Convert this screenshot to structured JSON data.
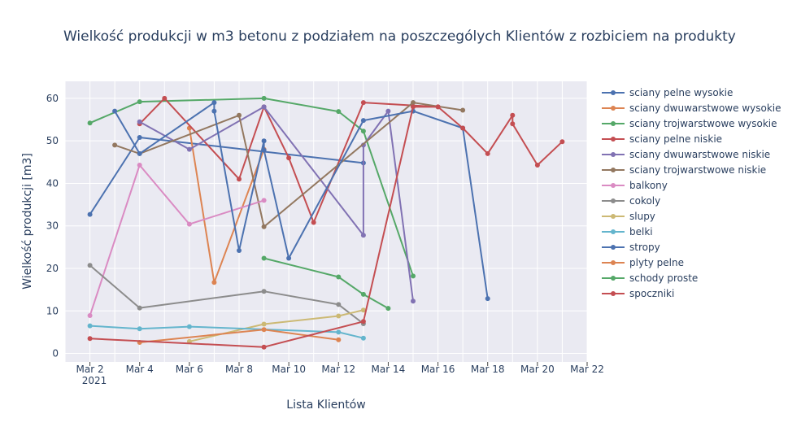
{
  "chart_data": {
    "type": "line",
    "title": "Wielkość produkcji w m3 betonu z podziałem na poszczególych Klientów z rozbiciem na produkty",
    "xlabel": "Lista Klientów",
    "ylabel": "Wielkość produkcji [m3]",
    "x_axis": {
      "kind": "date",
      "range": [
        "2021-03-01",
        "2021-03-22"
      ],
      "tick_dates": [
        "2021-03-02",
        "2021-03-04",
        "2021-03-06",
        "2021-03-08",
        "2021-03-10",
        "2021-03-12",
        "2021-03-14",
        "2021-03-16",
        "2021-03-18",
        "2021-03-20",
        "2021-03-22"
      ],
      "tick_labels": [
        "Mar 2",
        "Mar 4",
        "Mar 6",
        "Mar 8",
        "Mar 10",
        "Mar 12",
        "Mar 14",
        "Mar 16",
        "Mar 18",
        "Mar 20",
        "Mar 22"
      ],
      "year_label": "2021"
    },
    "y_axis": {
      "range": [
        -2,
        64
      ],
      "ticks": [
        0,
        10,
        20,
        30,
        40,
        50,
        60
      ]
    },
    "grid": true,
    "legend_position": "right",
    "series": [
      {
        "name": "sciany pelne wysokie",
        "color": "#4c72b0",
        "points": [
          [
            "2021-03-02",
            32.7
          ],
          [
            "2021-03-04",
            50.8
          ],
          [
            "2021-03-13",
            44.8
          ]
        ]
      },
      {
        "name": "sciany dwuwarstwowe wysokie",
        "color": "#dd8452",
        "points": [
          [
            "2021-03-06",
            53
          ],
          [
            "2021-03-07",
            16.7
          ],
          [
            "2021-03-09",
            48
          ]
        ]
      },
      {
        "name": "sciany trojwarstwowe wysokie",
        "color": "#55a868",
        "points": [
          [
            "2021-03-02",
            54.2
          ],
          [
            "2021-03-04",
            59.2
          ],
          [
            "2021-03-09",
            60
          ],
          [
            "2021-03-12",
            56.9
          ],
          [
            "2021-03-13",
            52.3
          ],
          [
            "2021-03-15",
            18.2
          ]
        ]
      },
      {
        "name": "sciany pelne niskie",
        "color": "#c44e52",
        "points": [
          [
            "2021-03-04",
            54
          ],
          [
            "2021-03-05",
            60
          ],
          [
            "2021-03-08",
            41
          ],
          [
            "2021-03-09",
            58
          ],
          [
            "2021-03-10",
            46
          ],
          [
            "2021-03-11",
            30.8
          ],
          [
            "2021-03-13",
            59
          ],
          [
            "2021-03-16",
            58
          ]
        ]
      },
      {
        "name": "sciany dwuwarstwowe niskie",
        "color": "#8172b3",
        "points": [
          [
            "2021-03-04",
            54.5
          ],
          [
            "2021-03-06",
            48
          ],
          [
            "2021-03-09",
            58
          ],
          [
            "2021-03-13",
            27.8
          ],
          [
            "2021-03-13",
            49
          ],
          [
            "2021-03-14",
            57
          ],
          [
            "2021-03-15",
            12.3
          ]
        ]
      },
      {
        "name": "sciany trojwarstwowe niskie",
        "color": "#937860",
        "points": [
          [
            "2021-03-03",
            49
          ],
          [
            "2021-03-04",
            47
          ],
          [
            "2021-03-08",
            56
          ],
          [
            "2021-03-09",
            29.8
          ],
          [
            "2021-03-15",
            59
          ],
          [
            "2021-03-17",
            57.2
          ]
        ]
      },
      {
        "name": "balkony",
        "color": "#da8bc3",
        "points": [
          [
            "2021-03-02",
            8.9
          ],
          [
            "2021-03-04",
            44.3
          ],
          [
            "2021-03-06",
            30.4
          ],
          [
            "2021-03-09",
            36
          ]
        ]
      },
      {
        "name": "cokoly",
        "color": "#8c8c8c",
        "points": [
          [
            "2021-03-02",
            20.7
          ],
          [
            "2021-03-04",
            10.7
          ],
          [
            "2021-03-09",
            14.6
          ],
          [
            "2021-03-12",
            11.5
          ],
          [
            "2021-03-13",
            7
          ]
        ]
      },
      {
        "name": "slupy",
        "color": "#ccb974",
        "points": [
          [
            "2021-03-06",
            2.8
          ],
          [
            "2021-03-09",
            6.9
          ],
          [
            "2021-03-12",
            8.8
          ],
          [
            "2021-03-13",
            10.2
          ]
        ]
      },
      {
        "name": "belki",
        "color": "#64b5cd",
        "points": [
          [
            "2021-03-02",
            6.5
          ],
          [
            "2021-03-04",
            5.8
          ],
          [
            "2021-03-06",
            6.3
          ],
          [
            "2021-03-12",
            5
          ],
          [
            "2021-03-13",
            3.6
          ]
        ]
      },
      {
        "name": "stropy",
        "color": "#4c72b0",
        "points": [
          [
            "2021-03-03",
            57
          ],
          [
            "2021-03-04",
            47
          ],
          [
            "2021-03-07",
            59
          ],
          [
            "2021-03-07",
            57
          ],
          [
            "2021-03-08",
            24.2
          ],
          [
            "2021-03-09",
            50
          ],
          [
            "2021-03-09",
            47.8
          ],
          [
            "2021-03-10",
            22.4
          ],
          [
            "2021-03-13",
            54.8
          ],
          [
            "2021-03-15",
            57
          ],
          [
            "2021-03-17",
            53
          ],
          [
            "2021-03-18",
            12.9
          ]
        ]
      },
      {
        "name": "plyty pelne",
        "color": "#dd8452",
        "points": [
          [
            "2021-03-04",
            2.6
          ],
          [
            "2021-03-09",
            5.6
          ],
          [
            "2021-03-12",
            3.2
          ]
        ]
      },
      {
        "name": "schody proste",
        "color": "#55a868",
        "points": [
          [
            "2021-03-09",
            22.4
          ],
          [
            "2021-03-12",
            18
          ],
          [
            "2021-03-13",
            13.9
          ],
          [
            "2021-03-14",
            10.6
          ]
        ]
      },
      {
        "name": "spoczniki",
        "color": "#c44e52",
        "points": [
          [
            "2021-03-02",
            3.5
          ],
          [
            "2021-03-09",
            1.5
          ],
          [
            "2021-03-13",
            7.5
          ],
          [
            "2021-03-15",
            58
          ],
          [
            "2021-03-16",
            58
          ],
          [
            "2021-03-17",
            53
          ],
          [
            "2021-03-18",
            47
          ],
          [
            "2021-03-19",
            56
          ],
          [
            "2021-03-19",
            54
          ],
          [
            "2021-03-20",
            44.3
          ],
          [
            "2021-03-21",
            49.8
          ]
        ]
      }
    ]
  }
}
